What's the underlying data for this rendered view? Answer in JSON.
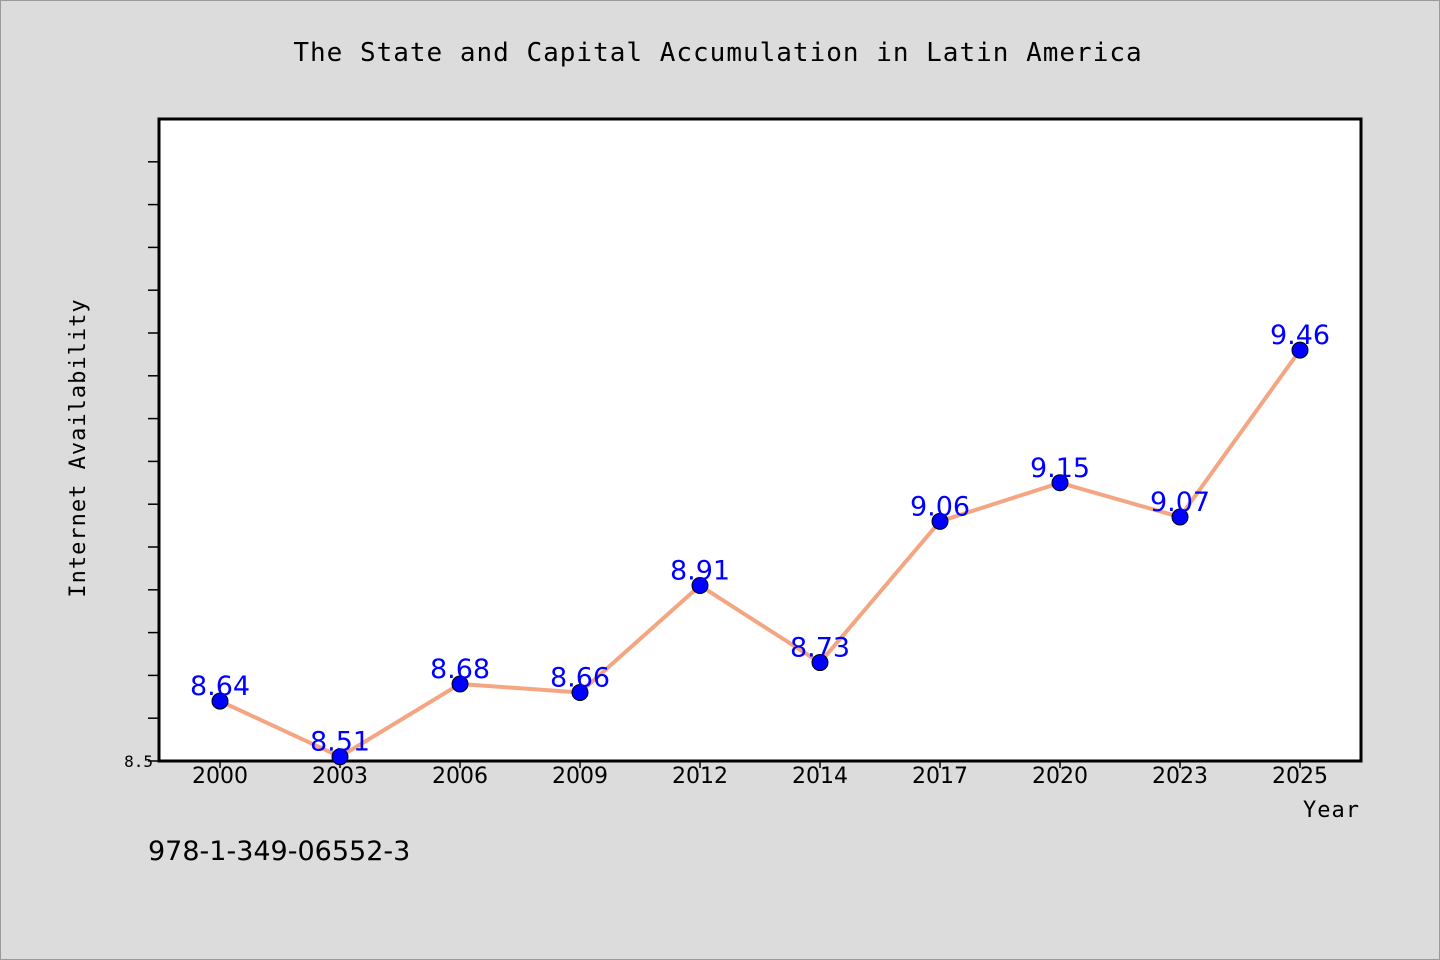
{
  "chart_data": {
    "type": "line",
    "title": "The State and Capital Accumulation in Latin America",
    "xlabel": "Year",
    "ylabel": "Internet Availability",
    "categories": [
      "2000",
      "2003",
      "2006",
      "2009",
      "2012",
      "2014",
      "2017",
      "2020",
      "2023",
      "2025"
    ],
    "series": [
      {
        "values": [
          8.64,
          8.51,
          8.68,
          8.66,
          8.91,
          8.73,
          9.06,
          9.15,
          9.07,
          9.46
        ],
        "data_labels": [
          "8.64",
          "8.51",
          "8.68",
          "8.66",
          "8.91",
          "8.73",
          "9.06",
          "9.15",
          "9.07",
          "9.46"
        ],
        "line_color": "#f4a582",
        "marker_color": "#0000ff"
      }
    ],
    "ylim": [
      8.5,
      10.0
    ],
    "y_ticks_labeled": [
      "8.5"
    ],
    "y_minor_tick_step": 0.1,
    "y_major_tick_step": 0.5,
    "grid": false,
    "label_color": "#0000ff"
  },
  "footer": {
    "isbn": "978-1-349-06552-3"
  }
}
